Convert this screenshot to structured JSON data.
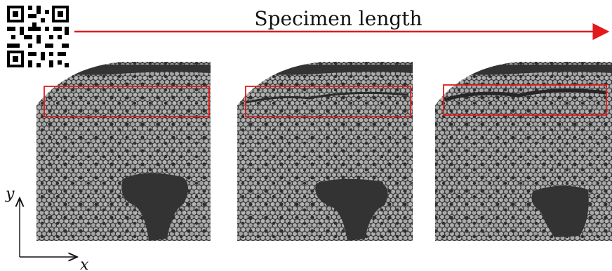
{
  "figure": {
    "title": "Specimen length",
    "axes": {
      "x_label": "x",
      "y_label": "y"
    },
    "qr_code": {
      "icon": "qr-code-icon"
    },
    "panels": [
      {
        "id": "panel-1",
        "highlight": "region of interest"
      },
      {
        "id": "panel-2",
        "highlight": "region of interest"
      },
      {
        "id": "panel-3",
        "highlight": "region of interest"
      }
    ],
    "colors": {
      "arrow": "#e31a1c",
      "highlight_box": "#e31a1c",
      "matrix": "#333333",
      "fibers": "#a8a8a8"
    }
  }
}
